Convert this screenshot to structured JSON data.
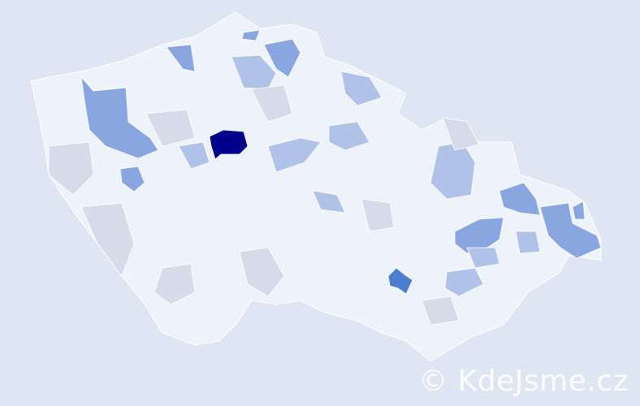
{
  "watermark": "© KdeJsme.cz",
  "colors": {
    "background": "#dde6f2",
    "base": "#eef2fa",
    "low": "#d5dbe8",
    "light": "#b0c2e8",
    "medium": "#8aa6e0",
    "strong": "#4a7fd0",
    "max": "#00008b"
  },
  "regions": [
    {
      "level": "max"
    },
    {
      "level": "strong"
    },
    {
      "level": "medium"
    },
    {
      "level": "medium"
    },
    {
      "level": "medium"
    },
    {
      "level": "medium"
    },
    {
      "level": "medium"
    },
    {
      "level": "medium"
    },
    {
      "level": "medium"
    },
    {
      "level": "medium"
    },
    {
      "level": "medium"
    },
    {
      "level": "light"
    },
    {
      "level": "light"
    },
    {
      "level": "light"
    },
    {
      "level": "light"
    },
    {
      "level": "light"
    },
    {
      "level": "light"
    },
    {
      "level": "light"
    },
    {
      "level": "light"
    },
    {
      "level": "light"
    },
    {
      "level": "light"
    },
    {
      "level": "low"
    },
    {
      "level": "low"
    },
    {
      "level": "low"
    },
    {
      "level": "low"
    },
    {
      "level": "low"
    },
    {
      "level": "low"
    },
    {
      "level": "low"
    },
    {
      "level": "low"
    },
    {
      "level": "low"
    }
  ]
}
